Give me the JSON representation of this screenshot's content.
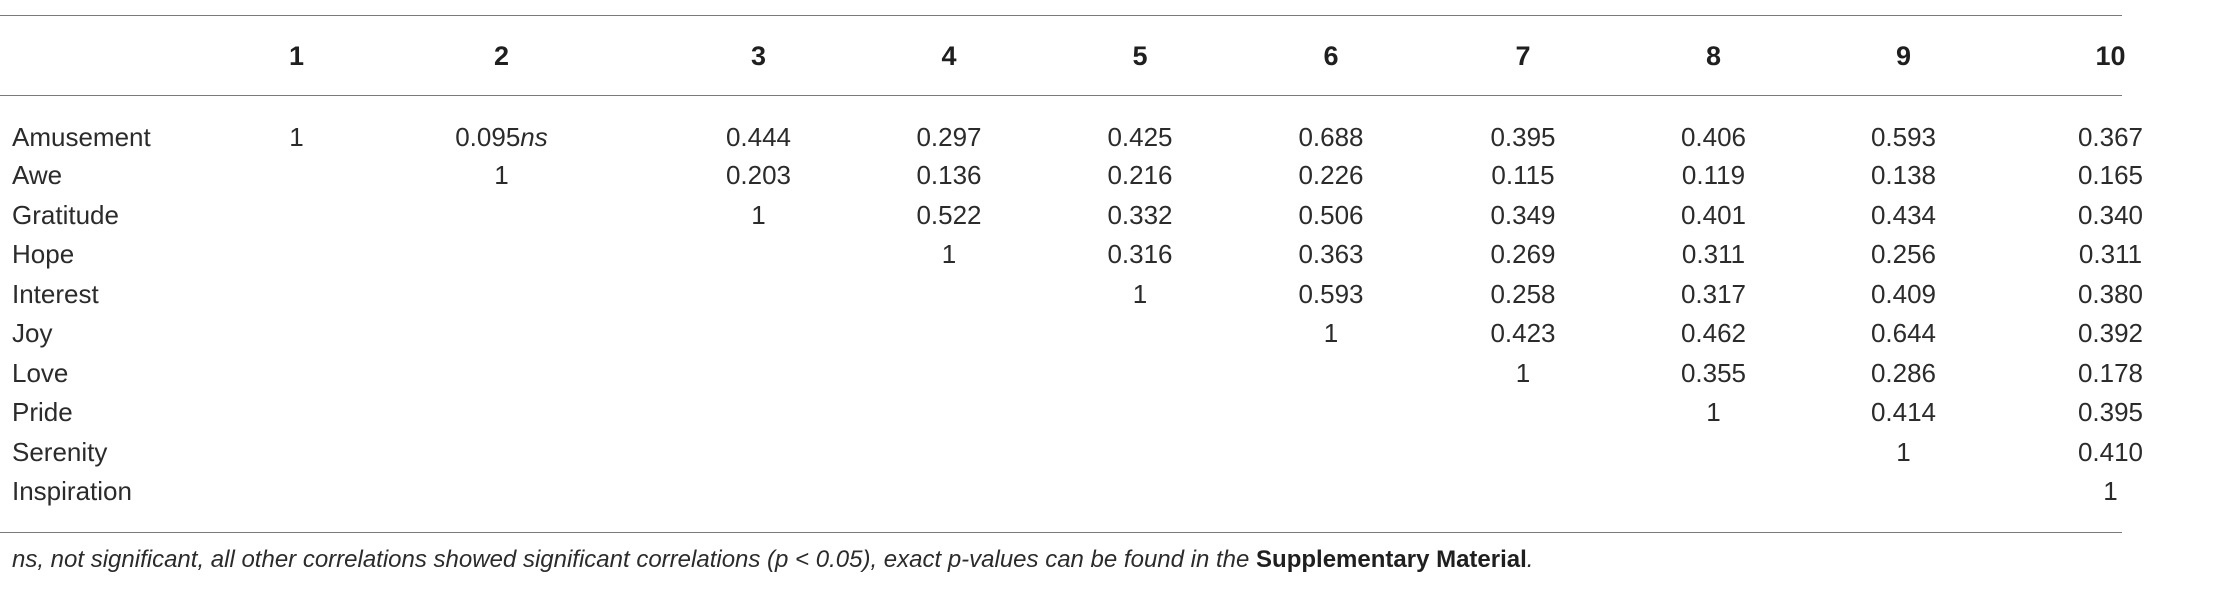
{
  "table": {
    "columns": [
      "",
      "1",
      "2",
      "3",
      "4",
      "5",
      "6",
      "7",
      "8",
      "9",
      "10"
    ],
    "rows": [
      {
        "label": "Amusement",
        "cells": [
          "1",
          "0.095",
          "0.444",
          "0.297",
          "0.425",
          "0.688",
          "0.395",
          "0.406",
          "0.593",
          "0.367"
        ],
        "ns_suffix": "ns"
      },
      {
        "label": "Awe",
        "cells": [
          "",
          "1",
          "0.203",
          "0.136",
          "0.216",
          "0.226",
          "0.115",
          "0.119",
          "0.138",
          "0.165"
        ]
      },
      {
        "label": "Gratitude",
        "cells": [
          "",
          "",
          "1",
          "0.522",
          "0.332",
          "0.506",
          "0.349",
          "0.401",
          "0.434",
          "0.340"
        ]
      },
      {
        "label": "Hope",
        "cells": [
          "",
          "",
          "",
          "1",
          "0.316",
          "0.363",
          "0.269",
          "0.311",
          "0.256",
          "0.311"
        ]
      },
      {
        "label": "Interest",
        "cells": [
          "",
          "",
          "",
          "",
          "1",
          "0.593",
          "0.258",
          "0.317",
          "0.409",
          "0.380"
        ]
      },
      {
        "label": "Joy",
        "cells": [
          "",
          "",
          "",
          "",
          "",
          "1",
          "0.423",
          "0.462",
          "0.644",
          "0.392"
        ]
      },
      {
        "label": "Love",
        "cells": [
          "",
          "",
          "",
          "",
          "",
          "",
          "1",
          "0.355",
          "0.286",
          "0.178"
        ]
      },
      {
        "label": "Pride",
        "cells": [
          "",
          "",
          "",
          "",
          "",
          "",
          "",
          "1",
          "0.414",
          "0.395"
        ]
      },
      {
        "label": "Serenity",
        "cells": [
          "",
          "",
          "",
          "",
          "",
          "",
          "",
          "",
          "1",
          "0.410"
        ]
      },
      {
        "label": "Inspiration",
        "cells": [
          "",
          "",
          "",
          "",
          "",
          "",
          "",
          "",
          "",
          "1"
        ]
      }
    ]
  },
  "footnote": {
    "text": "ns, not significant, all other correlations showed significant correlations (p < 0.05), exact p-values can be found in the ",
    "bold": "Supplementary Material",
    "end": "."
  }
}
